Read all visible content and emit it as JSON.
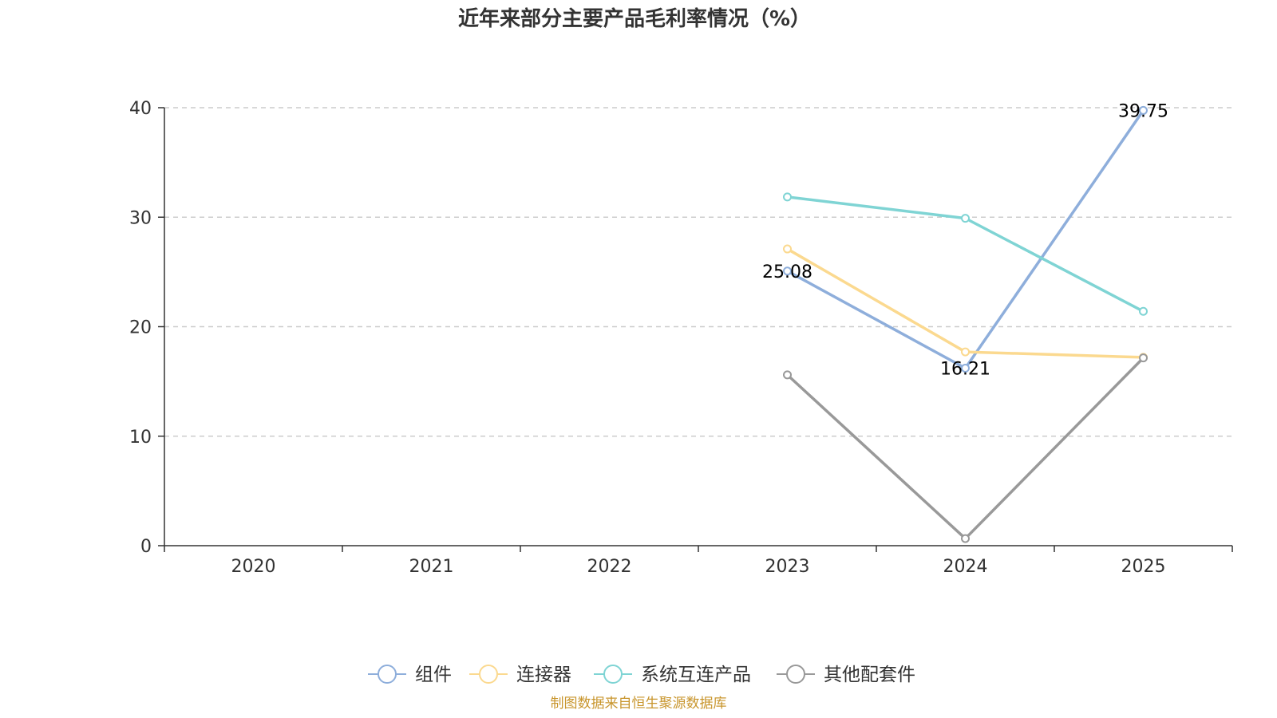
{
  "chart_data": {
    "type": "line",
    "title": "近年来部分主要产品毛利率情况（%）",
    "categories": [
      "2020",
      "2021",
      "2022",
      "2023",
      "2024",
      "2025"
    ],
    "ylim": [
      0,
      40
    ],
    "yticks": [
      0,
      10,
      20,
      30,
      40
    ],
    "grid": true,
    "legend_position": "bottom",
    "xlabel": "",
    "ylabel": "",
    "series": [
      {
        "name": "组件",
        "color": "#8eaedb",
        "values": [
          null,
          null,
          null,
          25.08,
          16.21,
          39.75
        ],
        "data_labels": [
          null,
          null,
          null,
          "25.08",
          "16.21",
          "39.75"
        ]
      },
      {
        "name": "连接器",
        "color": "#fbd98f",
        "values": [
          null,
          null,
          null,
          27.1,
          17.7,
          17.2
        ],
        "data_labels": [
          null,
          null,
          null,
          null,
          null,
          null
        ]
      },
      {
        "name": "系统互连产品",
        "color": "#7fd4d4",
        "values": [
          null,
          null,
          null,
          31.85,
          29.9,
          21.4
        ],
        "data_labels": [
          null,
          null,
          null,
          null,
          null,
          null
        ]
      },
      {
        "name": "其他配套件",
        "color": "#999999",
        "values": [
          null,
          null,
          null,
          15.6,
          0.65,
          17.15
        ],
        "data_labels": [
          null,
          null,
          null,
          null,
          null,
          null
        ]
      }
    ],
    "source": "制图数据来自恒生聚源数据库"
  }
}
